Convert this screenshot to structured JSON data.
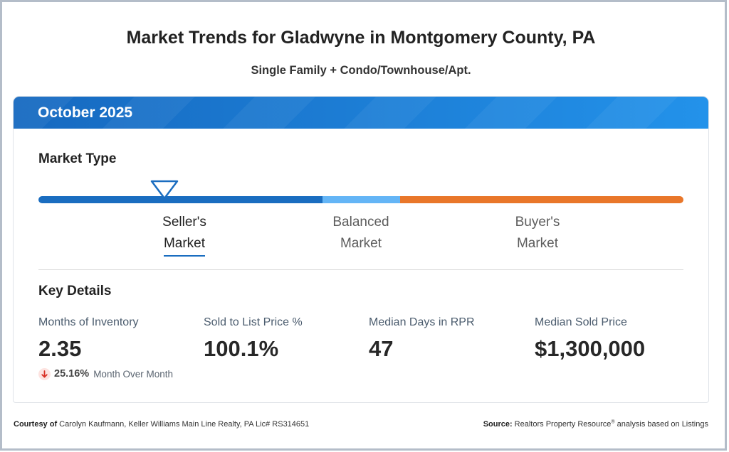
{
  "page": {
    "title": "Market Trends for Gladwyne in Montgomery County, PA",
    "subtitle": "Single Family + Condo/Townhouse/Apt."
  },
  "card": {
    "period": "October 2025",
    "market_type": {
      "heading": "Market Type",
      "indicator_icon": "triangle-marker-icon",
      "indicator_level": 0.195,
      "segments": [
        {
          "line1": "Seller's",
          "line2": "Market",
          "active": true,
          "color": "#1a6dc0"
        },
        {
          "line1": "Balanced",
          "line2": "Market",
          "active": false,
          "color": "#64b5f6"
        },
        {
          "line1": "Buyer's",
          "line2": "Market",
          "active": false,
          "color": "#e9772a"
        }
      ]
    },
    "key_details": {
      "heading": "Key Details",
      "items": [
        {
          "label": "Months of Inventory",
          "value": "2.35",
          "change": {
            "icon": "arrow-down-icon",
            "percent": "25.16%",
            "period": "Month Over Month"
          }
        },
        {
          "label": "Sold to List Price %",
          "value": "100.1%"
        },
        {
          "label": "Median Days in RPR",
          "value": "47"
        },
        {
          "label": "Median Sold Price",
          "value": "$1,300,000"
        }
      ]
    }
  },
  "footer": {
    "courtesy_label": "Courtesy of",
    "courtesy_text": "Carolyn Kaufmann, Keller Williams Main Line Realty, PA Lic# RS314651",
    "source_label": "Source:",
    "source_name": "Realtors Property Resource",
    "source_mark": "®",
    "source_desc": "analysis based on Listings"
  },
  "colors": {
    "header_start": "#1669c0",
    "header_end": "#2392ea",
    "accent": "#1a6dc0",
    "change_down": "#d93025",
    "change_down_bg": "#fde3e0"
  }
}
